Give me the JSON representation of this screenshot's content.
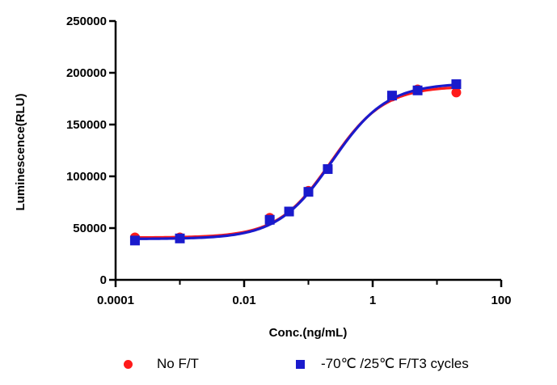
{
  "chart_data": {
    "type": "scatter",
    "xlabel": "Conc.(ng/mL)",
    "ylabel": "Luminescence(RLU)",
    "xscale": "log",
    "xlim": [
      0.0001,
      100
    ],
    "ylim": [
      0,
      250000
    ],
    "x_ticks": [
      {
        "value": 0.0001,
        "label": "0.0001"
      },
      {
        "value": 0.01,
        "label": "0.01"
      },
      {
        "value": 1,
        "label": "1"
      },
      {
        "value": 100,
        "label": "100"
      }
    ],
    "y_ticks": [
      {
        "value": 0,
        "label": "0"
      },
      {
        "value": 50000,
        "label": "50000"
      },
      {
        "value": 100000,
        "label": "100000"
      },
      {
        "value": 150000,
        "label": "150000"
      },
      {
        "value": 200000,
        "label": "200000"
      },
      {
        "value": 250000,
        "label": "250000"
      }
    ],
    "legend_position": "bottom",
    "series": [
      {
        "name": "No F/T",
        "marker": "circle",
        "color": "#ff1a1a",
        "x": [
          0.0002,
          0.001,
          0.025,
          0.05,
          0.1,
          0.2,
          2,
          5,
          20
        ],
        "y": [
          41000,
          41000,
          60000,
          66000,
          86000,
          107000,
          177000,
          184000,
          181000
        ],
        "fit": {
          "bottom": 40800,
          "top": 187000,
          "log_ec50": -0.65,
          "hill": 1.05
        }
      },
      {
        "name": "-70℃ /25℃  F/T3 cycles",
        "marker": "square",
        "color": "#1a1acc",
        "x": [
          0.0002,
          0.001,
          0.025,
          0.05,
          0.1,
          0.2,
          2,
          5,
          20
        ],
        "y": [
          38000,
          40000,
          58000,
          66000,
          85000,
          107000,
          178000,
          183000,
          189000
        ],
        "fit": {
          "bottom": 39500,
          "top": 190000,
          "log_ec50": -0.63,
          "hill": 1.02
        }
      }
    ]
  }
}
